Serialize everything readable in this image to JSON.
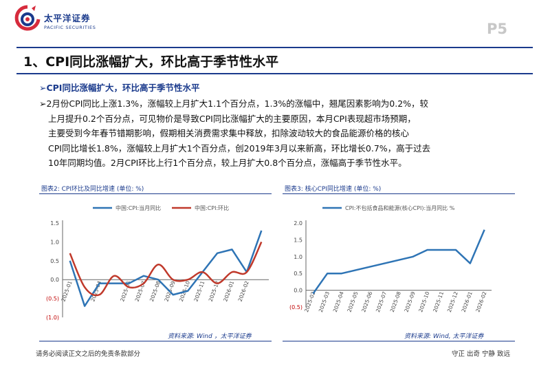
{
  "header": {
    "brand_cn": "太平洋证券",
    "brand_en": "PACIFIC SECURITIES",
    "page_number": "P5"
  },
  "title": "1、CPI同比涨幅扩大，环比高于季节性水平",
  "subheading": "➢CPI同比涨幅扩大，环比高于季节性水平",
  "paragraph_lines": [
    "➢2月份CPI同比上涨1.3%，涨幅较上月扩大1.1个百分点，1.3%的涨幅中，翘尾因素影响为0.2%，较",
    "上月提升0.2个百分点，可见物价是导致CPI同比涨幅扩大的主要原因，本月CPI表现超市场预期，",
    "主要受到今年春节错期影响，假期相关消费需求集中释放，扣除波动较大的食品能源价格的核心",
    "CPI同比增长1.8%，涨幅较上月扩大1个百分点，创2019年3月以来新高，环比增长0.7%，高于过去",
    "10年同期均值。2月CPI环比上行1个百分点，较上月扩大0.8个百分点，涨幅高于季节性水平。"
  ],
  "figure2": {
    "caption": "图表2: CPI环比及同比增速 (单位: %)",
    "source": "资料来源:  Wind ，太平洋证券"
  },
  "figure3": {
    "caption": "图表3: 核心CPI同比增速 (单位: %)",
    "source": "资料来源: Wind, 太平洋证券"
  },
  "footer": {
    "left": "请务必阅读正文之后的免责条款部分",
    "right": "守正  出奇  宁静  致远"
  },
  "colors": {
    "brand_blue": "#1a3a8c",
    "series_blue": "#2e74b5",
    "series_red": "#c0392b",
    "negative_red": "#c00000"
  },
  "chart_data": [
    {
      "type": "line",
      "title": "",
      "x": [
        "2025-01",
        "2025-02",
        "2025-03",
        "2025-04",
        "2025-05",
        "2025-06",
        "2025-07",
        "2025-08",
        "2025-09",
        "2025-10",
        "2025-11",
        "2025-12",
        "2026-01",
        "2026-02"
      ],
      "tick_labels": [
        "2025-01",
        "2025-04",
        "2025-06",
        "2025-07",
        "2025-08",
        "2025-09",
        "2025-10",
        "2025-11",
        "2025-12",
        "2026-01",
        "2026-02"
      ],
      "series": [
        {
          "name": "中国:CPI:当月同比",
          "color": "#2e74b5",
          "values": [
            0.5,
            -0.7,
            -0.1,
            -0.1,
            -0.1,
            0.1,
            0.0,
            -0.4,
            -0.3,
            0.2,
            0.7,
            0.8,
            0.2,
            1.3
          ]
        },
        {
          "name": "中国:CPI:环比",
          "color": "#c0392b",
          "values": [
            0.7,
            -0.2,
            -0.4,
            0.1,
            -0.2,
            -0.1,
            0.4,
            0.0,
            0.0,
            0.2,
            -0.1,
            0.2,
            0.2,
            1.0
          ]
        }
      ],
      "y_tick_labels": [
        "1.5",
        "1.0",
        "0.5",
        "0.0",
        "(0.5)",
        "(1.0)"
      ],
      "ylim": [
        -1.0,
        1.5
      ],
      "legend": "top",
      "grid": false
    },
    {
      "type": "line",
      "title": "",
      "x": [
        "2025-02",
        "2025-03",
        "2025-04",
        "2025-05",
        "2025-06",
        "2025-07",
        "2025-08",
        "2025-09",
        "2025-10",
        "2025-11",
        "2025-12",
        "2026-01",
        "2026-02"
      ],
      "tick_labels": [
        "2025-02",
        "2025-03",
        "2025-04",
        "2025-05",
        "2025-06",
        "2025-07",
        "2025-08",
        "2025-09",
        "2025-10",
        "2025-11",
        "2025-12",
        "2026-01",
        "2026-02"
      ],
      "series": [
        {
          "name": "CPI:不包括食品和能源(核心CPI):当月同比 %",
          "color": "#2e74b5",
          "values": [
            -0.1,
            0.5,
            0.5,
            0.6,
            0.7,
            0.8,
            0.9,
            1.0,
            1.2,
            1.2,
            1.2,
            0.8,
            1.8
          ]
        }
      ],
      "y_tick_labels": [
        "2.0",
        "1.5",
        "1.0",
        "0.5",
        "0.0",
        "(0.5)"
      ],
      "ylim": [
        -0.5,
        2.0
      ],
      "legend": "top",
      "grid": false
    }
  ]
}
